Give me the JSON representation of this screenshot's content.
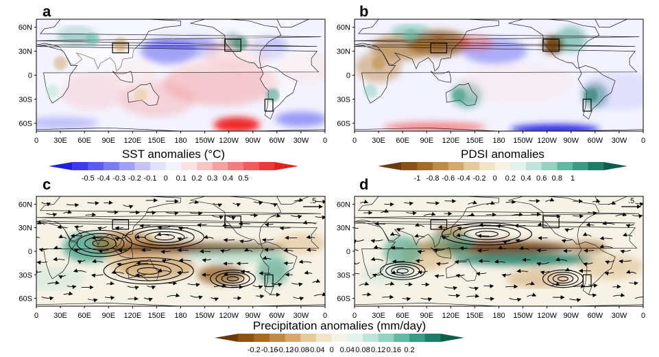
{
  "chart_data": [
    {
      "type": "heatmap",
      "panel": "a",
      "field": "sst",
      "x_ticks": [
        "0",
        "30E",
        "60E",
        "90E",
        "120E",
        "150E",
        "180",
        "150W",
        "120W",
        "90W",
        "60W",
        "30W",
        "0"
      ],
      "y_ticks": [
        "60N",
        "30N",
        "0",
        "30S",
        "60S"
      ],
      "colorbar": {
        "title": "SST anomalies (°C)",
        "labels": [
          "-0.5",
          "-0.4",
          "-0.3",
          "-0.2",
          "-0.1",
          "0",
          "0.1",
          "0.2",
          "0.3",
          "0.4",
          "0.5"
        ],
        "colors": [
          "#1f1fe0",
          "#3b3bea",
          "#5b5bf0",
          "#7d7df3",
          "#a0a0f6",
          "#c4c4f8",
          "#e2e2fb",
          "#f3f3ff",
          "#fbe2e2",
          "#f9c4c4",
          "#f6a0a0",
          "#f37d7d",
          "#f05b5b",
          "#ea3b3b",
          "#e01f1f"
        ]
      },
      "region_boxes": [
        [
          95,
          115,
          28,
          40
        ],
        [
          -125,
          -105,
          30,
          45
        ],
        [
          -75,
          -65,
          -45,
          -30
        ]
      ]
    },
    {
      "type": "heatmap",
      "panel": "b",
      "field": "pdsi",
      "x_ticks": [
        "0",
        "30E",
        "60E",
        "90E",
        "120E",
        "150E",
        "180",
        "150W",
        "120W",
        "90W",
        "60W",
        "30W",
        "0"
      ],
      "y_ticks": [
        "60N",
        "30N",
        "0",
        "30S",
        "60S"
      ],
      "colorbar": {
        "title": "PDSI anomalies",
        "labels": [
          "-1",
          "-0.8",
          "-0.6",
          "-0.4",
          "-0.2",
          "0",
          "0.2",
          "0.4",
          "0.6",
          "0.8",
          "1"
        ],
        "colors": [
          "#6b3a0a",
          "#8a5215",
          "#a66a22",
          "#bf8a45",
          "#d4a96b",
          "#e6cb9a",
          "#f2e4c6",
          "#f7f2e6",
          "#e4f2ee",
          "#bfe4d9",
          "#93d1c0",
          "#62b9a2",
          "#3a9c84",
          "#1d7d66",
          "#0b5e4c"
        ]
      },
      "region_boxes": [
        [
          95,
          115,
          28,
          40
        ],
        [
          -125,
          -105,
          30,
          45
        ],
        [
          -75,
          -65,
          -45,
          -30
        ]
      ]
    },
    {
      "type": "heatmap",
      "panel": "c",
      "field": "precipitation_with_streamlines",
      "reference_vector": ".5",
      "x_ticks": [
        "0",
        "30E",
        "60E",
        "90E",
        "120E",
        "150E",
        "180",
        "150W",
        "120W",
        "90W",
        "60W",
        "30W",
        "0"
      ],
      "y_ticks": [
        "60N",
        "30N",
        "0",
        "30S",
        "60S"
      ],
      "region_boxes": [
        [
          95,
          115,
          28,
          40
        ],
        [
          -125,
          -105,
          30,
          45
        ],
        [
          -75,
          -65,
          -45,
          -30
        ]
      ]
    },
    {
      "type": "heatmap",
      "panel": "d",
      "field": "precipitation_with_streamlines",
      "reference_vector": ".5",
      "x_ticks": [
        "0",
        "30E",
        "60E",
        "90E",
        "120E",
        "150E",
        "180",
        "150W",
        "120W",
        "90W",
        "60W",
        "30W",
        "0"
      ],
      "y_ticks": [
        "60N",
        "30N",
        "0",
        "30S",
        "60S"
      ],
      "region_boxes": [
        [
          95,
          115,
          28,
          40
        ],
        [
          -125,
          -105,
          30,
          45
        ],
        [
          -75,
          -65,
          -45,
          -30
        ]
      ]
    },
    {
      "type": "colorbar",
      "title": "Precipitation anomalies (mm/day)",
      "labels": [
        "-0.2",
        "-0.16",
        "-0.12",
        "-0.08",
        "-0.04",
        "0",
        "0.04",
        "0.08",
        "0.12",
        "0.16",
        "0.2"
      ],
      "colors": [
        "#6b3a0a",
        "#8a5215",
        "#a66a22",
        "#bf8a45",
        "#d4a96b",
        "#e6cb9a",
        "#f2e4c6",
        "#f7f2e6",
        "#e4f2ee",
        "#bfe4d9",
        "#93d1c0",
        "#62b9a2",
        "#3a9c84",
        "#1d7d66",
        "#0b5e4c"
      ]
    }
  ],
  "letters": {
    "a": "a",
    "b": "b",
    "c": "c",
    "d": "d"
  }
}
